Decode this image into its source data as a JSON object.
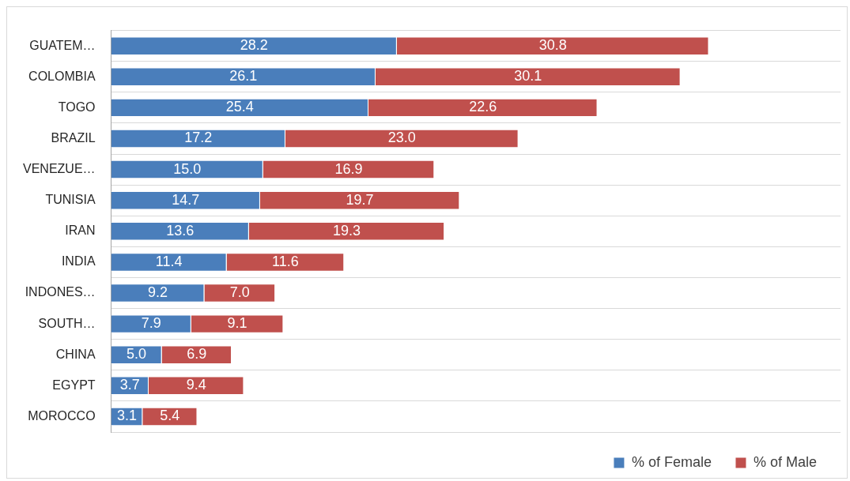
{
  "chart_data": {
    "type": "bar",
    "orientation": "horizontal",
    "stacked": true,
    "categories": [
      "GUATEM…",
      "COLOMBIA",
      "TOGO",
      "BRAZIL",
      "VENEZUE…",
      "TUNISIA",
      "IRAN",
      "INDIA",
      "INDONES…",
      "SOUTH…",
      "CHINA",
      "EGYPT",
      "MOROCCO"
    ],
    "series": [
      {
        "name": "% of Female",
        "color": "#4a7ebb",
        "values": [
          28.2,
          26.1,
          25.4,
          17.2,
          15.0,
          14.7,
          13.6,
          11.4,
          9.2,
          7.9,
          5.0,
          3.7,
          3.1
        ],
        "value_labels": [
          "28.2",
          "26.1",
          "25.4",
          "17.2",
          "15.0",
          "14.7",
          "13.6",
          "11.4",
          "9.2",
          "7.9",
          "5.0",
          "3.7",
          "3.1"
        ]
      },
      {
        "name": "% of Male",
        "color": "#c0504d",
        "values": [
          30.8,
          30.1,
          22.6,
          23.0,
          16.9,
          19.7,
          19.3,
          11.6,
          7.0,
          9.1,
          6.9,
          9.4,
          5.4
        ],
        "value_labels": [
          "30.8",
          "30.1",
          "22.6",
          "23.0",
          "16.9",
          "19.7",
          "19.3",
          "11.6",
          "7.0",
          "9.1",
          "6.9",
          "9.4",
          "5.4"
        ]
      }
    ],
    "xlim": [
      0,
      72
    ],
    "tick_labels": "y",
    "grid": "y",
    "legend": "bottom right"
  }
}
